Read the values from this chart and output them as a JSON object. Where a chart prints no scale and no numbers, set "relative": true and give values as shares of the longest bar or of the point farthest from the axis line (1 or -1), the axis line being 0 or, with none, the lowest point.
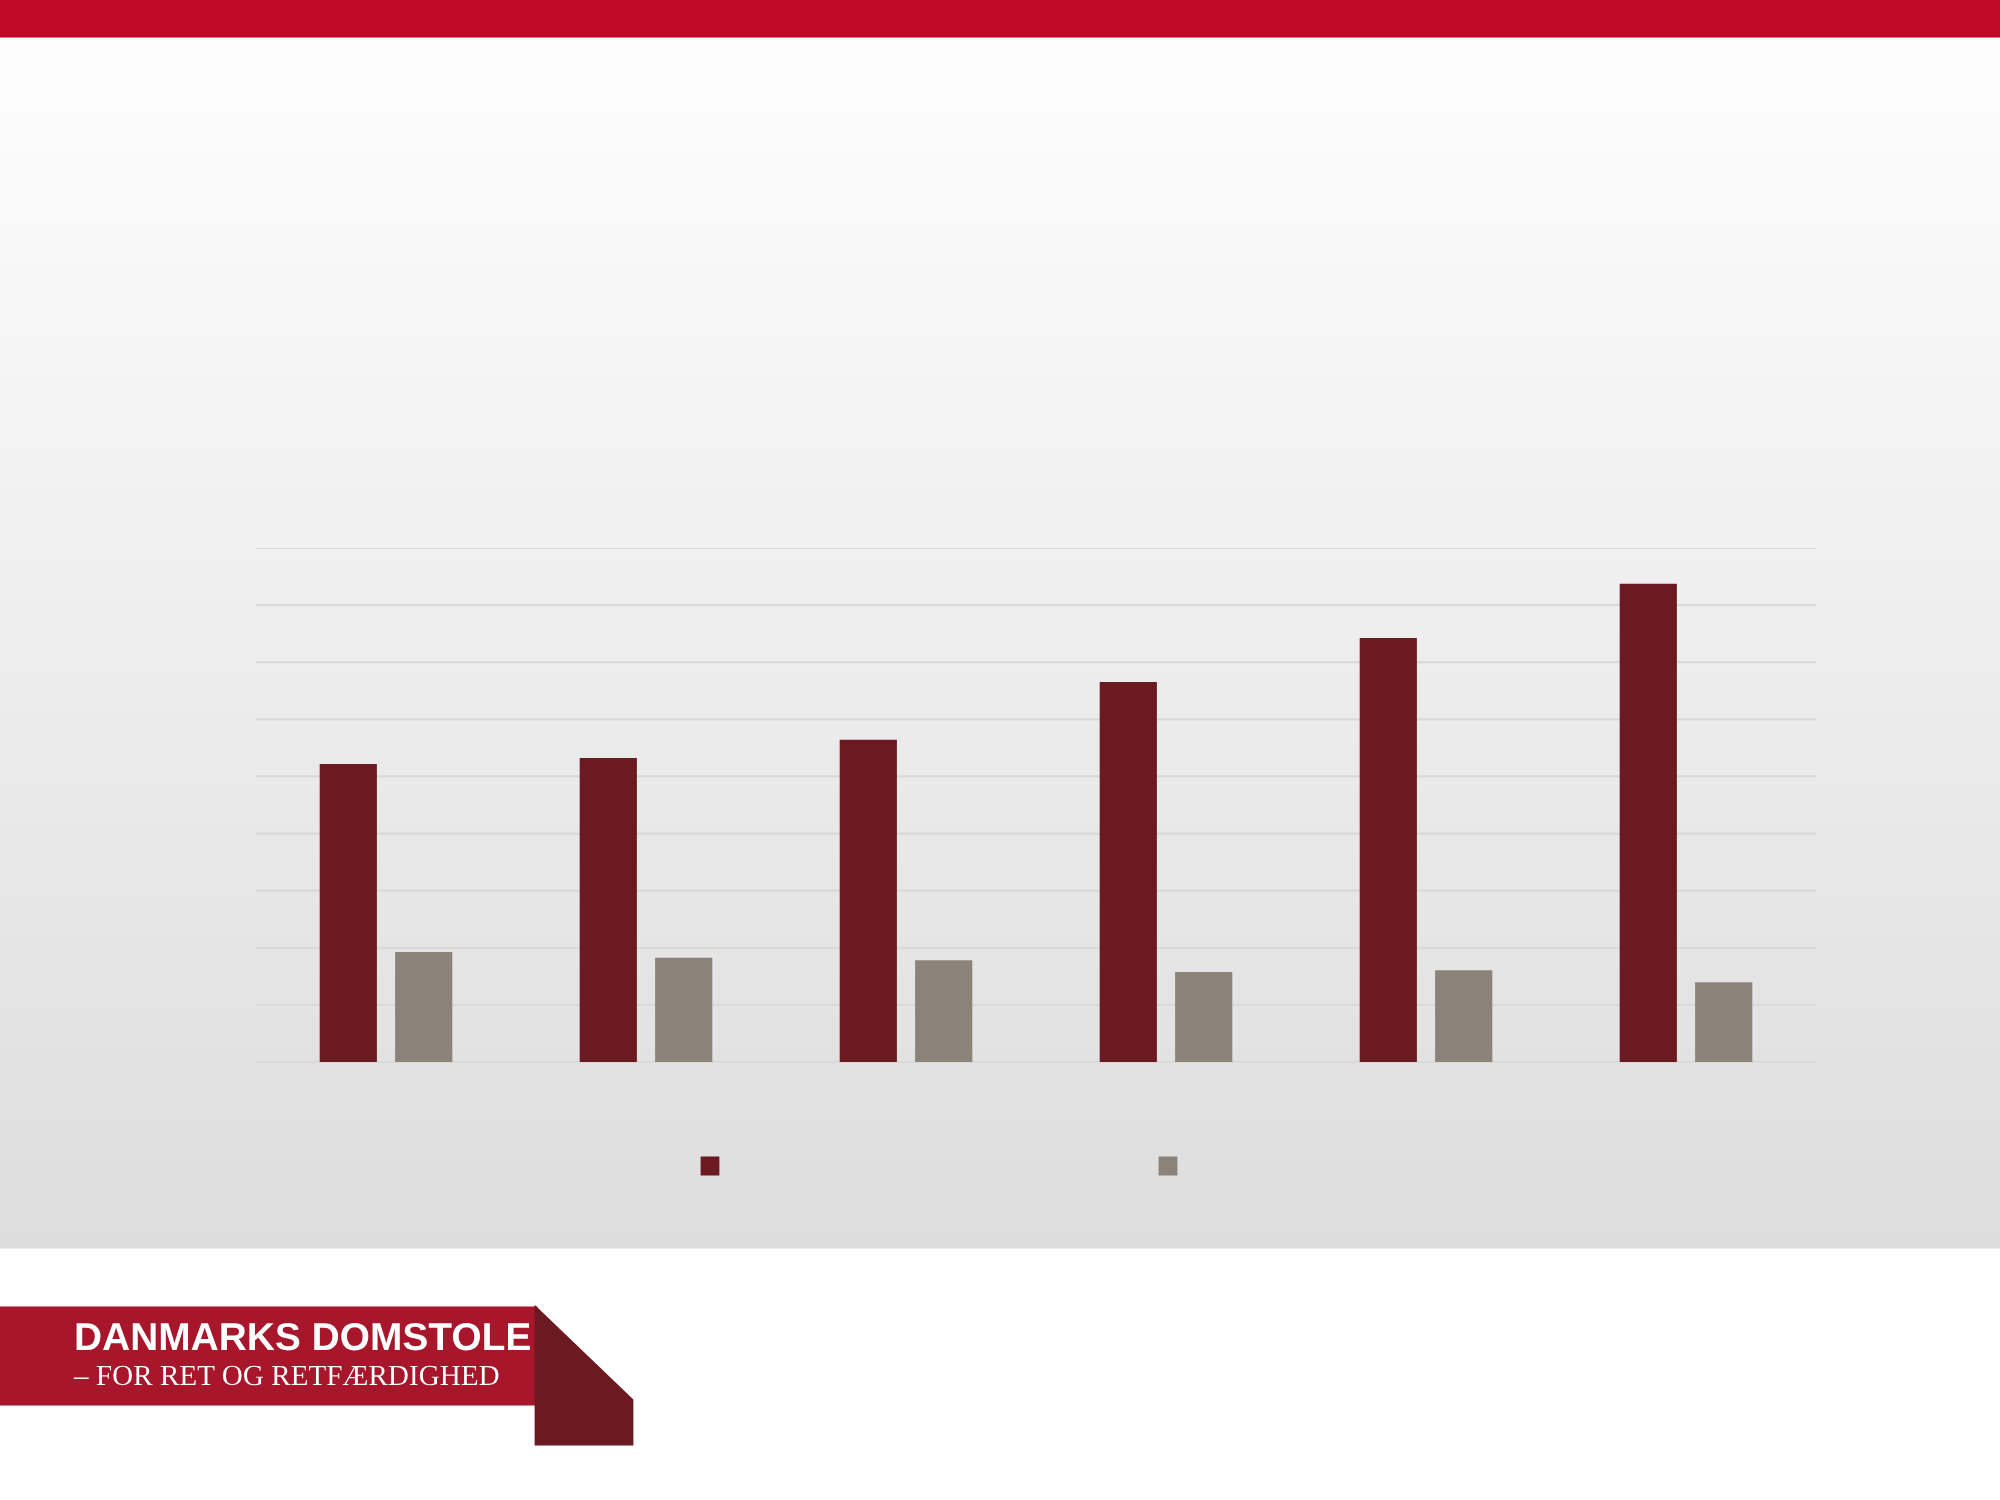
{
  "chart_data": {
    "type": "bar",
    "relative": true,
    "categories": [
      null,
      null,
      null,
      null,
      null,
      null
    ],
    "series": [
      {
        "color": "#6b1a22",
        "values": [
          0.623,
          0.636,
          0.674,
          0.795,
          0.887,
          1
        ]
      },
      {
        "color": "#8b837a",
        "values": [
          0.23,
          0.218,
          0.213,
          0.188,
          0.192,
          0.167
        ]
      }
    ],
    "grid": "y",
    "annotations": [
      "DANMARKS DOMSTOLE",
      "– FOR RET OG RETFÆRDIGHED"
    ]
  }
}
